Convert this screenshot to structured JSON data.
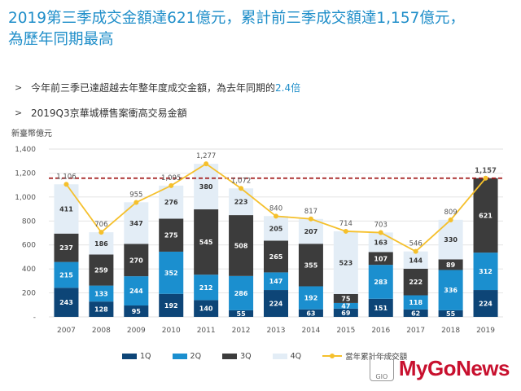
{
  "header": {
    "title_line1": "2019第三季成交金額達621億元，累計前三季成交額達1,157億元，",
    "title_line2": "為歷年同期最高"
  },
  "bullets": [
    {
      "arrow": ">",
      "text": "今年前三季已達超越去年整年度成交金額，為去年同期的",
      "highlight": "2.4倍"
    },
    {
      "arrow": ">",
      "text": "2019Q3京華城標售案衝高交易金額",
      "highlight": ""
    }
  ],
  "colors": {
    "q1": "#0d4577",
    "q2": "#1b8fcf",
    "q3": "#3c3c3c",
    "q4": "#e3edf6",
    "cumulative_line": "#f5c02c",
    "reference_line": "#a31c1c",
    "accent": "#1f8ec9"
  },
  "chart_data": {
    "type": "bar",
    "stacked": true,
    "unit_label": "新臺幣億元",
    "categories": [
      "2007",
      "2008",
      "2009",
      "2010",
      "2011",
      "2012",
      "2013",
      "2014",
      "2015",
      "2016",
      "2017",
      "2018",
      "2019"
    ],
    "series": [
      {
        "name": "1Q",
        "values": [
          243,
          128,
          95,
          192,
          140,
          55,
          224,
          63,
          69,
          151,
          62,
          55,
          224
        ]
      },
      {
        "name": "2Q",
        "values": [
          215,
          133,
          244,
          352,
          212,
          286,
          147,
          192,
          47,
          283,
          118,
          336,
          312
        ]
      },
      {
        "name": "3Q",
        "values": [
          237,
          259,
          270,
          275,
          545,
          508,
          265,
          355,
          75,
          107,
          222,
          89,
          621
        ]
      },
      {
        "name": "4Q",
        "values": [
          411,
          186,
          347,
          276,
          380,
          223,
          205,
          207,
          523,
          163,
          144,
          330,
          null
        ]
      }
    ],
    "line_series": {
      "name": "當年累計年成交額",
      "values": [
        1106,
        706,
        955,
        1095,
        1277,
        1072,
        840,
        817,
        714,
        703,
        546,
        809,
        1157
      ]
    },
    "reference_line_value": 1157,
    "y_ticks": [
      "-",
      "200",
      "400",
      "600",
      "800",
      "1,000",
      "1,200",
      "1,400"
    ],
    "ylim": [
      0,
      1400
    ],
    "grid": true,
    "legend_position": "bottom"
  },
  "watermark": {
    "badge": "GIO",
    "text": "MyGoNews"
  }
}
